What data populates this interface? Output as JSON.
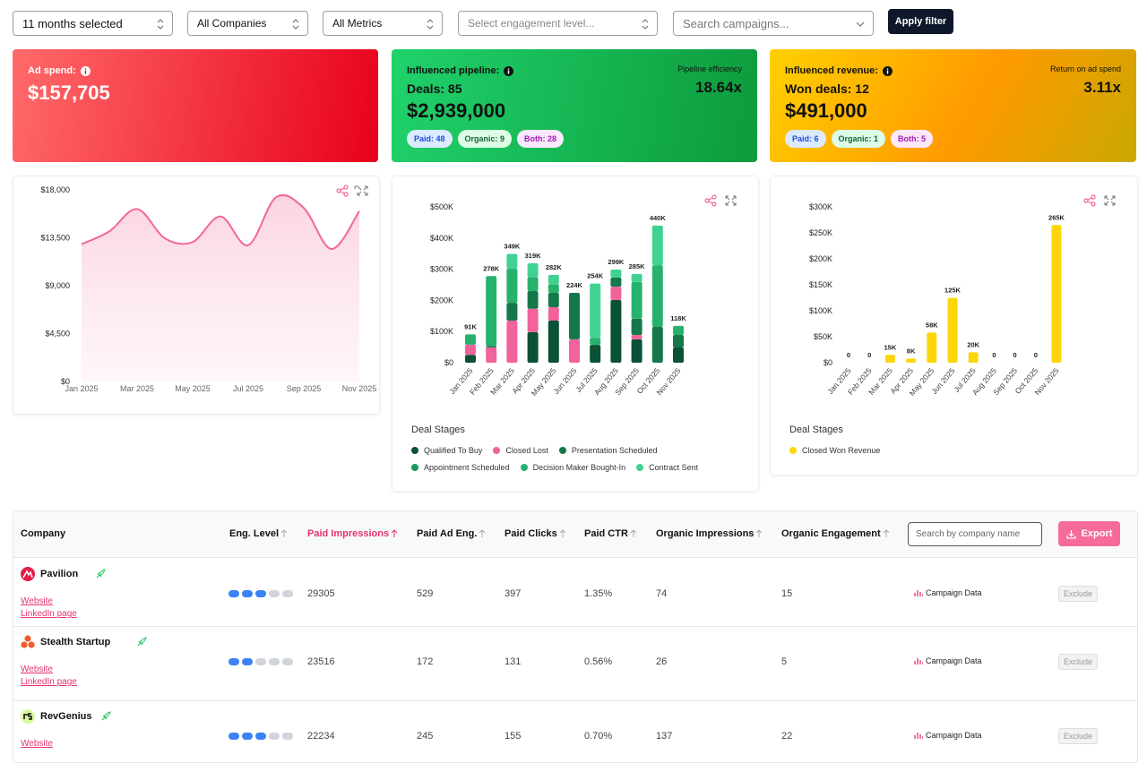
{
  "filters": {
    "months": "11 months selected",
    "companies": "All Companies",
    "metrics": "All Metrics",
    "engagement": "Select engagement level...",
    "search": "Search campaigns...",
    "apply": "Apply filter"
  },
  "cards": [
    {
      "label": "Ad spend:",
      "amount": "$157,705"
    },
    {
      "label": "Influenced pipeline:",
      "deals": "Deals: 85",
      "amount": "$2,939,000",
      "side_label": "Pipeline efficiency",
      "side_value": "18.64x",
      "pills": [
        "Paid: 48",
        "Organic: 9",
        "Both: 28"
      ]
    },
    {
      "label": "Influenced revenue:",
      "deals": "Won deals: 12",
      "amount": "$491,000",
      "side_label": "Return on ad spend",
      "side_value": "3.11x",
      "pills": [
        "Paid: 6",
        "Organic: 1",
        "Both: 5"
      ]
    }
  ],
  "chart_data": [
    {
      "type": "area",
      "x": [
        "Jan 2025",
        null,
        "Mar 2025",
        null,
        "May 2025",
        null,
        "Jul 2025",
        null,
        "Sep 2025",
        null,
        "Nov 2025"
      ],
      "values": [
        12900,
        14100,
        16200,
        13450,
        13100,
        15500,
        12800,
        17300,
        16300,
        12450,
        16000
      ],
      "color": "#f2679b",
      "ylim": [
        0,
        18000
      ],
      "yticks": [
        {
          "value": 0,
          "label": "$0"
        },
        {
          "value": 4500,
          "label": "$4,500"
        },
        {
          "value": 9000,
          "label": "$9,000"
        },
        {
          "value": 13500,
          "label": "$13,500"
        },
        {
          "value": 18000,
          "label": "$18,000"
        }
      ]
    },
    {
      "type": "stacked_bar",
      "legend_title": "Deal Stages",
      "categories": [
        "Jan 2025",
        "Feb 2025",
        "Mar 2025",
        "Apr 2025",
        "May 2025",
        "Jun 2025",
        "Jul 2025",
        "Aug 2025",
        "Sep 2025",
        "Oct 2025",
        "Nov 2025"
      ],
      "series": [
        {
          "name": "Qualified To Buy",
          "color": "#0b5136",
          "values": [
            25000,
            0,
            0,
            98000,
            135000,
            0,
            57000,
            201000,
            75000,
            0,
            49000
          ]
        },
        {
          "name": "Closed Lost",
          "color": "#f2629b",
          "values": [
            33000,
            49000,
            135000,
            75000,
            43000,
            75000,
            0,
            43000,
            14000,
            0,
            0
          ]
        },
        {
          "name": "Presentation Scheduled",
          "color": "#14784b",
          "values": [
            0,
            5000,
            57000,
            57000,
            46000,
            149000,
            0,
            29000,
            52000,
            115000,
            40000
          ]
        },
        {
          "name": "Appointment Scheduled",
          "color": "#1a9a5f",
          "values": [
            0,
            0,
            0,
            0,
            0,
            0,
            0,
            0,
            0,
            0,
            0
          ]
        },
        {
          "name": "Decision Maker Bought-In",
          "color": "#26b26d",
          "values": [
            33000,
            224000,
            110000,
            45000,
            28000,
            0,
            23000,
            0,
            118000,
            198000,
            29000
          ]
        },
        {
          "name": "Contract Sent",
          "color": "#41d292",
          "values": [
            0,
            0,
            47000,
            44000,
            30000,
            0,
            174000,
            26000,
            26000,
            127000,
            0
          ]
        }
      ],
      "totals": [
        91000,
        278000,
        349000,
        319000,
        282000,
        224000,
        254000,
        299000,
        285000,
        440000,
        118000
      ],
      "total_labels": [
        "91K",
        "278K",
        "349K",
        "319K",
        "282K",
        "224K",
        "254K",
        "299K",
        "285K",
        "440K",
        "118K"
      ],
      "ylim": [
        0,
        500000
      ],
      "yticks": [
        {
          "value": 0,
          "label": "$0"
        },
        {
          "value": 100000,
          "label": "$100K"
        },
        {
          "value": 200000,
          "label": "$200K"
        },
        {
          "value": 300000,
          "label": "$300K"
        },
        {
          "value": 400000,
          "label": "$400K"
        },
        {
          "value": 500000,
          "label": "$500K"
        }
      ]
    },
    {
      "type": "bar",
      "legend_title": "Deal Stages",
      "categories": [
        "Jan 2025",
        "Feb 2025",
        "Mar 2025",
        "Apr 2025",
        "May 2025",
        "Jun 2025",
        "Jul 2025",
        "Aug 2025",
        "Sep 2025",
        "Oct 2025",
        "Nov 2025"
      ],
      "series": [
        {
          "name": "Closed Won Revenue",
          "color": "#fdd60a",
          "values": [
            0,
            0,
            15000,
            8000,
            58000,
            125000,
            20000,
            0,
            0,
            0,
            265000
          ],
          "value_labels": [
            "0",
            "0",
            "15K",
            "8K",
            "58K",
            "125K",
            "20K",
            "0",
            "0",
            "0",
            "265K"
          ]
        }
      ],
      "ylim": [
        0,
        300000
      ],
      "yticks": [
        {
          "value": 0,
          "label": "$0"
        },
        {
          "value": 50000,
          "label": "$50K"
        },
        {
          "value": 100000,
          "label": "$100K"
        },
        {
          "value": 150000,
          "label": "$150K"
        },
        {
          "value": 200000,
          "label": "$200K"
        },
        {
          "value": 250000,
          "label": "$250K"
        },
        {
          "value": 300000,
          "label": "$300K"
        }
      ]
    }
  ],
  "table": {
    "columns": [
      "Company",
      "Eng. Level",
      "Paid Impressions",
      "Paid Ad Eng.",
      "Paid Clicks",
      "Paid CTR",
      "Organic Impressions",
      "Organic Engagement"
    ],
    "search": "Search by company name",
    "export": "Export",
    "rows": [
      {
        "company": "Pavilion",
        "website": "Website",
        "linkedin": "LinkedIn page",
        "eng_level": 3,
        "cells": [
          "29305",
          "529",
          "397",
          "1.35%",
          "74",
          "15"
        ],
        "campaign": "Campaign Data",
        "exclude": "Exclude"
      },
      {
        "company": "Stealth Startup",
        "website": "Website",
        "linkedin": "LinkedIn page",
        "eng_level": 2,
        "cells": [
          "23516",
          "172",
          "131",
          "0.56%",
          "26",
          "5"
        ],
        "campaign": "Campaign Data",
        "exclude": "Exclude"
      },
      {
        "company": "RevGenius",
        "website": "Website",
        "eng_level": 3,
        "cells": [
          "22234",
          "245",
          "155",
          "0.70%",
          "137",
          "22"
        ],
        "campaign": "Campaign Data",
        "exclude": "Exclude"
      }
    ]
  }
}
